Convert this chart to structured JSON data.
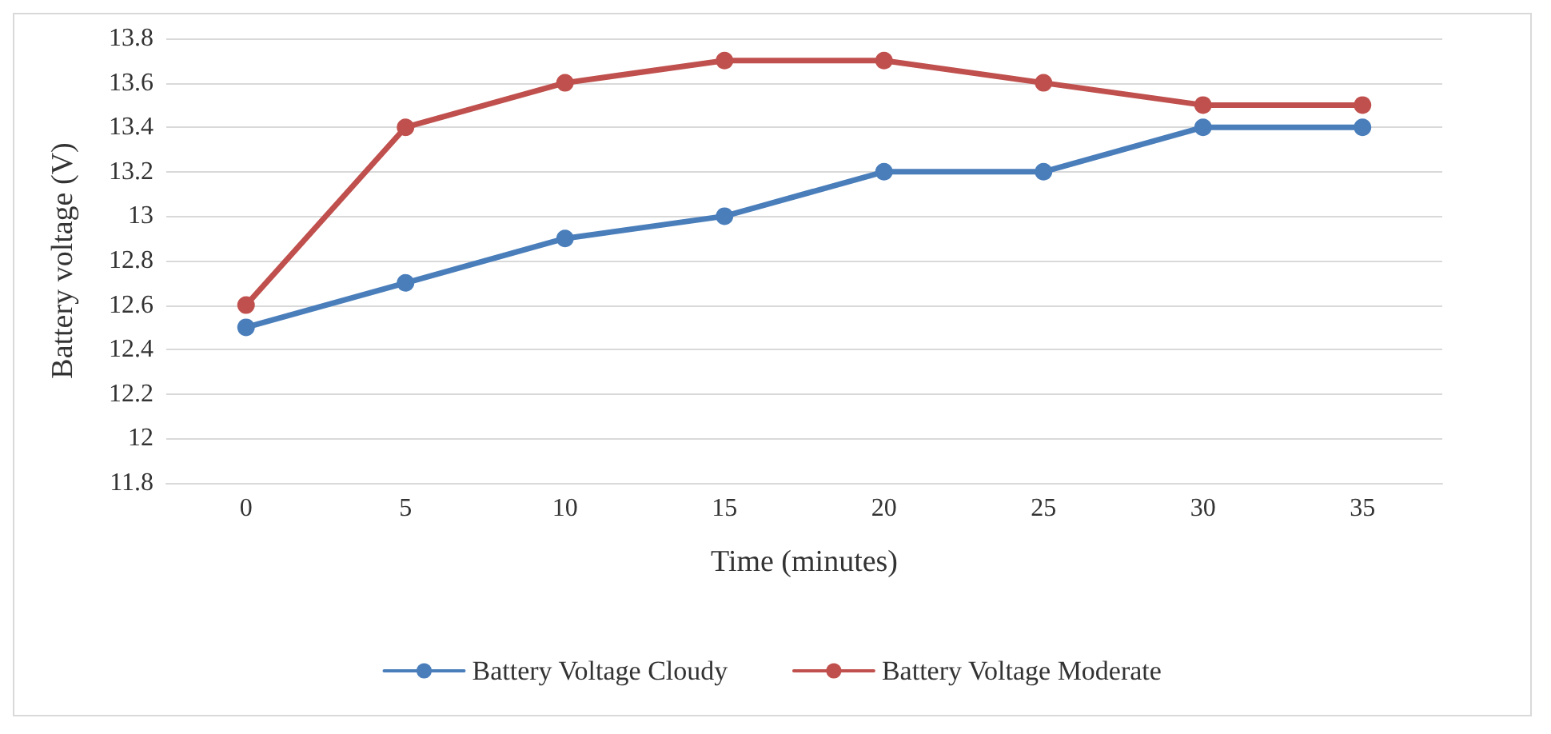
{
  "chart_data": {
    "type": "line",
    "xlabel": "Time (minutes)",
    "ylabel": "Battery voltage (V)",
    "categories": [
      "0",
      "5",
      "10",
      "15",
      "20",
      "25",
      "30",
      "35"
    ],
    "series": [
      {
        "name": "Battery Voltage Cloudy",
        "color": "#4a7ebb",
        "values": [
          12.5,
          12.7,
          12.9,
          13.0,
          13.2,
          13.2,
          13.4,
          13.4
        ]
      },
      {
        "name": "Battery Voltage Moderate",
        "color": "#c0504d",
        "values": [
          12.6,
          13.4,
          13.6,
          13.7,
          13.7,
          13.6,
          13.5,
          13.5
        ]
      }
    ],
    "ylim": [
      11.8,
      13.8
    ],
    "yticks": [
      11.8,
      12,
      12.2,
      12.4,
      12.6,
      12.8,
      13,
      13.2,
      13.4,
      13.6,
      13.8
    ],
    "grid": "y",
    "legend": "bottom",
    "marker": "circle",
    "line_style": "solid"
  }
}
